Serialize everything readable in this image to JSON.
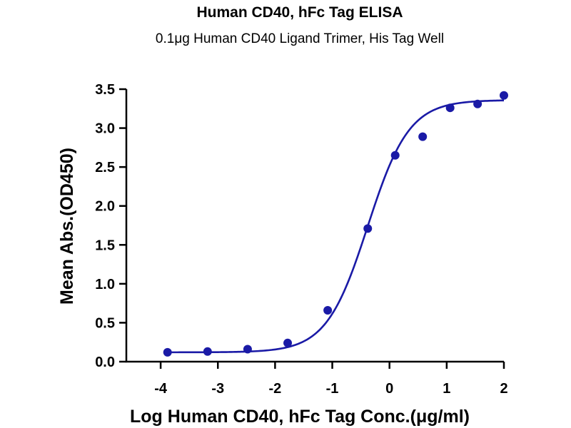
{
  "chart_data": {
    "type": "scatter",
    "title": "Human CD40, hFc Tag ELISA",
    "subtitle": "0.1μg Human CD40 Ligand Trimer, His Tag Well",
    "xlabel": "Log Human CD40, hFc Tag Conc.(μg/ml)",
    "ylabel": "Mean Abs.(OD450)",
    "xlim": [
      -4.6,
      2
    ],
    "ylim": [
      0,
      3.5
    ],
    "xticks": [
      -4,
      -3,
      -2,
      -1,
      0,
      1,
      2
    ],
    "yticks": [
      0.0,
      0.5,
      1.0,
      1.5,
      2.0,
      2.5,
      3.0,
      3.5
    ],
    "xtick_labels": [
      "-4",
      "-3",
      "-2",
      "-1",
      "0",
      "1",
      "2"
    ],
    "ytick_labels": [
      "0.0",
      "0.5",
      "1.0",
      "1.5",
      "2.0",
      "2.5",
      "3.0",
      "3.5"
    ],
    "grid": false,
    "legend": "none",
    "point_color": "#1a1aa6",
    "curve_color": "#1a1aa6",
    "series": [
      {
        "x": [
          -3.88,
          -3.18,
          -2.48,
          -1.78,
          -1.08,
          -0.38,
          0.1,
          0.58,
          1.06,
          1.54,
          2.0
        ],
        "y": [
          0.12,
          0.13,
          0.16,
          0.24,
          0.66,
          1.71,
          2.65,
          2.89,
          3.26,
          3.31,
          3.42
        ]
      }
    ],
    "fit": {
      "model": "4PL",
      "bottom": 0.12,
      "top": 3.36,
      "log_ec50": -0.38,
      "hill_slope": 1.2
    }
  }
}
